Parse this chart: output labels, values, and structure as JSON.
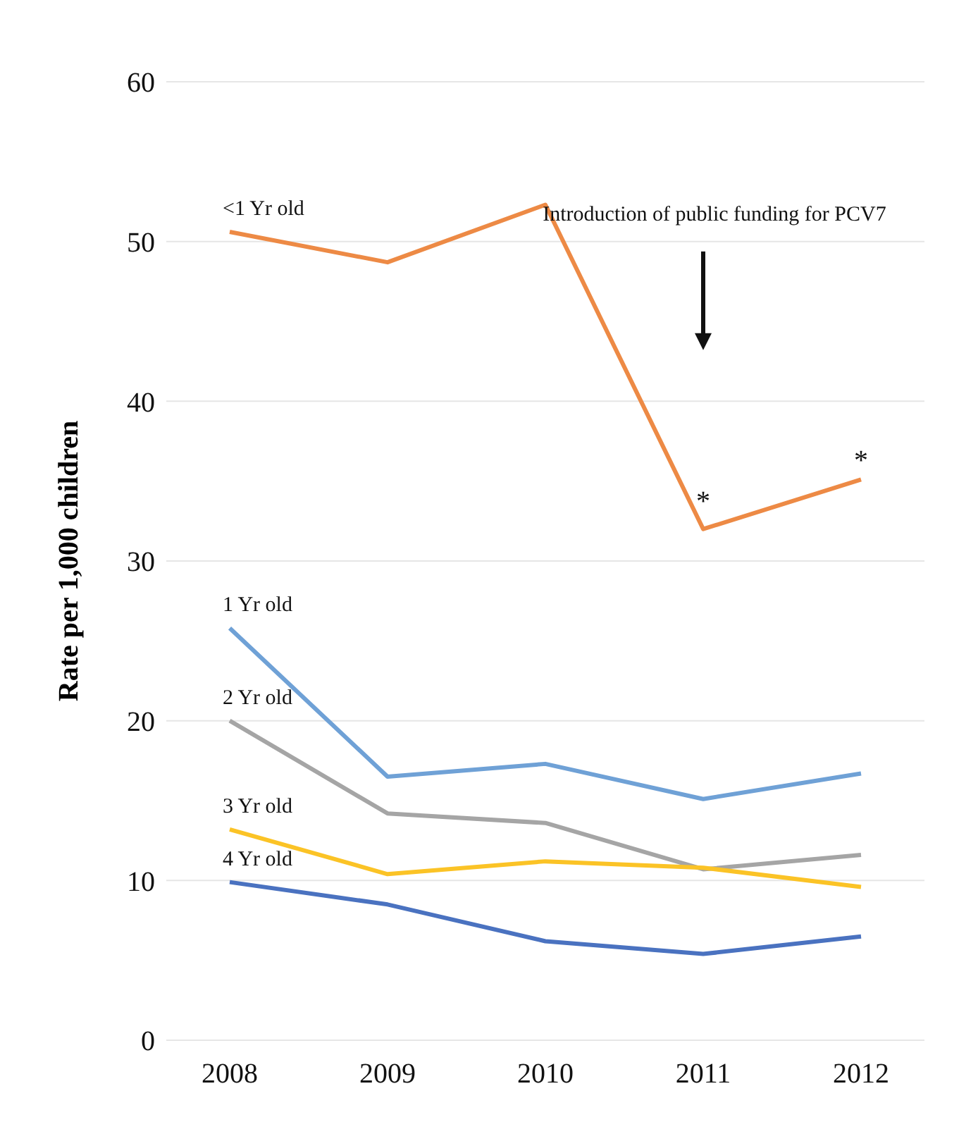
{
  "chart_data": {
    "type": "line",
    "ylabel": "Rate per 1,000 children",
    "categories": [
      "2008",
      "2009",
      "2010",
      "2011",
      "2012"
    ],
    "series": [
      {
        "name": "<1 Yr old",
        "color": "#ed8a45",
        "values": [
          50.6,
          48.7,
          52.3,
          32.0,
          35.1
        ]
      },
      {
        "name": "1 Yr old",
        "color": "#6fa1d6",
        "values": [
          25.8,
          16.5,
          17.3,
          15.1,
          16.7
        ]
      },
      {
        "name": "2 Yr old",
        "color": "#a5a5a5",
        "values": [
          20.0,
          14.2,
          13.6,
          10.7,
          11.6
        ]
      },
      {
        "name": "3 Yr old",
        "color": "#fbc326",
        "values": [
          13.2,
          10.4,
          11.2,
          10.8,
          9.6
        ]
      },
      {
        "name": "4 Yr old",
        "color": "#4a72c0",
        "values": [
          9.9,
          8.5,
          6.2,
          5.4,
          6.5
        ]
      }
    ],
    "annotations": [
      "Introduction of public funding for PCV7",
      "*",
      "*"
    ],
    "ylim": [
      0,
      60
    ],
    "yticks": [
      0,
      10,
      20,
      30,
      40,
      50,
      60
    ],
    "grid": "y",
    "legend": false,
    "marker": "none",
    "line_style": "solid"
  }
}
